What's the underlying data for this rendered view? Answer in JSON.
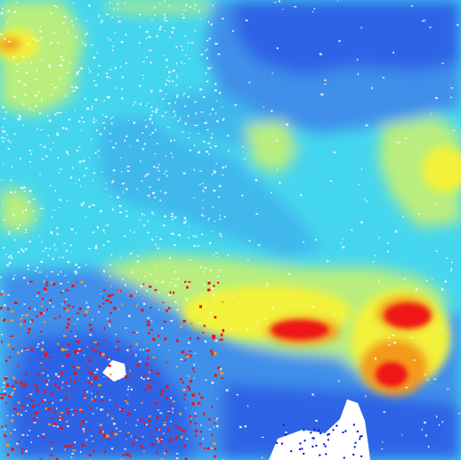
{
  "image": {
    "kind": "scattered-point colormap field",
    "colormap": "jet",
    "palette": {
      "dark_blue": "#0a1ecc",
      "blue": "#2f63e6",
      "mid_blue": "#3f8fea",
      "sky": "#41b8ec",
      "cyan": "#45d6ef",
      "aqua": "#6fe6e6",
      "light_green": "#b9ee7e",
      "yellow_green": "#d6f25c",
      "yellow": "#f2f23a",
      "orange": "#f39a1e",
      "red": "#ee1212",
      "white": "#ffffff"
    },
    "text": []
  }
}
